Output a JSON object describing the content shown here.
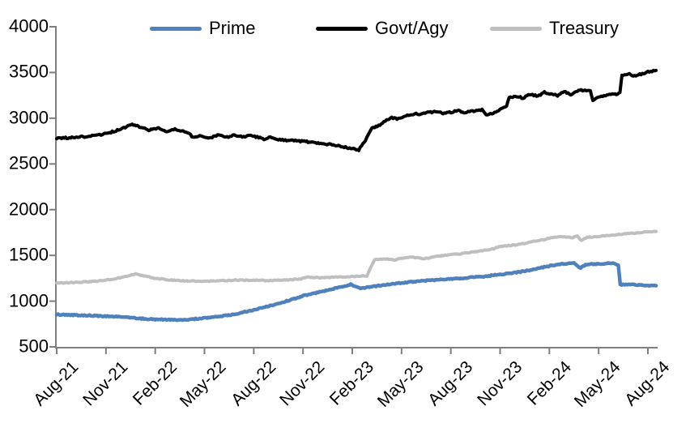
{
  "legend": [
    {
      "label": "Prime",
      "color": "#4F81BD"
    },
    {
      "label": "Govt/Agy",
      "color": "#000000"
    },
    {
      "label": "Treasury",
      "color": "#BFBFBF"
    }
  ],
  "axis_color": "#7F7F7F",
  "chart_data": {
    "type": "line",
    "title": "",
    "xlabel": "",
    "ylabel": "",
    "x_unit": "months since Aug-2021",
    "ylim": [
      500,
      4000
    ],
    "y_tick_labels": [
      "4000",
      "3500",
      "3000",
      "2500",
      "2000",
      "1500",
      "1000",
      "500"
    ],
    "x_tick_labels": [
      "Aug-21",
      "Nov-21",
      "Feb-22",
      "May-22",
      "Aug-22",
      "Nov-22",
      "Feb-23",
      "May-23",
      "Aug-23",
      "Nov-23",
      "Feb-24",
      "May-24",
      "Aug-24"
    ],
    "grid": false,
    "legend_position": "top",
    "series": [
      {
        "name": "Prime",
        "color": "#4F81BD",
        "points": [
          [
            0,
            855
          ],
          [
            0.5,
            850
          ],
          [
            1,
            848
          ],
          [
            2,
            842
          ],
          [
            3,
            836
          ],
          [
            4,
            826
          ],
          [
            5,
            812
          ],
          [
            6,
            800
          ],
          [
            7,
            795
          ],
          [
            7.5,
            793
          ],
          [
            8,
            798
          ],
          [
            9,
            815
          ],
          [
            10,
            833
          ],
          [
            11,
            862
          ],
          [
            12,
            905
          ],
          [
            13,
            950
          ],
          [
            14,
            1000
          ],
          [
            15,
            1058
          ],
          [
            16,
            1098
          ],
          [
            17,
            1140
          ],
          [
            17.9,
            1183
          ],
          [
            18.5,
            1136
          ],
          [
            19.2,
            1158
          ],
          [
            20,
            1178
          ],
          [
            21,
            1200
          ],
          [
            22,
            1218
          ],
          [
            23,
            1230
          ],
          [
            24,
            1242
          ],
          [
            25,
            1255
          ],
          [
            26,
            1268
          ],
          [
            27,
            1292
          ],
          [
            28,
            1312
          ],
          [
            29,
            1345
          ],
          [
            30,
            1385
          ],
          [
            30.8,
            1408
          ],
          [
            31.5,
            1415
          ],
          [
            31.9,
            1360
          ],
          [
            32.2,
            1400
          ],
          [
            33,
            1408
          ],
          [
            33.8,
            1415
          ],
          [
            34.2,
            1398
          ],
          [
            34.32,
            1178
          ],
          [
            35,
            1185
          ],
          [
            35.6,
            1175
          ],
          [
            36,
            1172
          ],
          [
            36.5,
            1168
          ]
        ]
      },
      {
        "name": "Govt/Agy",
        "color": "#000000",
        "points": [
          [
            0,
            2778
          ],
          [
            1,
            2790
          ],
          [
            2,
            2802
          ],
          [
            3,
            2830
          ],
          [
            4,
            2888
          ],
          [
            4.6,
            2930
          ],
          [
            5.2,
            2900
          ],
          [
            5.6,
            2868
          ],
          [
            6.2,
            2892
          ],
          [
            6.7,
            2852
          ],
          [
            7.2,
            2878
          ],
          [
            7.7,
            2858
          ],
          [
            8,
            2842
          ],
          [
            8.3,
            2790
          ],
          [
            8.8,
            2808
          ],
          [
            9.3,
            2782
          ],
          [
            9.8,
            2818
          ],
          [
            10.3,
            2792
          ],
          [
            10.8,
            2812
          ],
          [
            11.3,
            2795
          ],
          [
            11.8,
            2812
          ],
          [
            12.3,
            2790
          ],
          [
            12.7,
            2762
          ],
          [
            13,
            2795
          ],
          [
            13.5,
            2768
          ],
          [
            14,
            2760
          ],
          [
            15,
            2748
          ],
          [
            16,
            2728
          ],
          [
            17,
            2705
          ],
          [
            17.5,
            2685
          ],
          [
            18,
            2668
          ],
          [
            18.4,
            2655
          ],
          [
            18.8,
            2760
          ],
          [
            19.2,
            2890
          ],
          [
            19.6,
            2920
          ],
          [
            20,
            2968
          ],
          [
            20.4,
            3005
          ],
          [
            20.8,
            2990
          ],
          [
            21.2,
            3030
          ],
          [
            21.8,
            3048
          ],
          [
            22.2,
            3042
          ],
          [
            22.6,
            3060
          ],
          [
            23,
            3068
          ],
          [
            23.6,
            3052
          ],
          [
            24,
            3065
          ],
          [
            24.4,
            3082
          ],
          [
            24.8,
            3062
          ],
          [
            25.4,
            3078
          ],
          [
            25.9,
            3092
          ],
          [
            26.15,
            3032
          ],
          [
            26.5,
            3052
          ],
          [
            27,
            3092
          ],
          [
            27.4,
            3125
          ],
          [
            27.55,
            3228
          ],
          [
            28,
            3242
          ],
          [
            28.4,
            3218
          ],
          [
            28.8,
            3258
          ],
          [
            29.3,
            3242
          ],
          [
            29.7,
            3282
          ],
          [
            30.1,
            3262
          ],
          [
            30.5,
            3248
          ],
          [
            30.9,
            3292
          ],
          [
            31.3,
            3262
          ],
          [
            31.7,
            3300
          ],
          [
            32.1,
            3308
          ],
          [
            32.5,
            3298
          ],
          [
            32.65,
            3198
          ],
          [
            33,
            3238
          ],
          [
            33.5,
            3252
          ],
          [
            34,
            3262
          ],
          [
            34.3,
            3272
          ],
          [
            34.42,
            3462
          ],
          [
            34.8,
            3490
          ],
          [
            35.1,
            3462
          ],
          [
            35.5,
            3478
          ],
          [
            36,
            3510
          ],
          [
            36.5,
            3522
          ]
        ]
      },
      {
        "name": "Treasury",
        "color": "#BFBFBF",
        "points": [
          [
            0,
            1198
          ],
          [
            1,
            1204
          ],
          [
            2,
            1212
          ],
          [
            3,
            1228
          ],
          [
            4,
            1260
          ],
          [
            4.8,
            1298
          ],
          [
            5.5,
            1268
          ],
          [
            6,
            1248
          ],
          [
            7,
            1230
          ],
          [
            8,
            1220
          ],
          [
            9,
            1217
          ],
          [
            10,
            1222
          ],
          [
            11,
            1230
          ],
          [
            12,
            1228
          ],
          [
            13,
            1224
          ],
          [
            14,
            1232
          ],
          [
            14.8,
            1240
          ],
          [
            15.2,
            1262
          ],
          [
            16,
            1258
          ],
          [
            17,
            1262
          ],
          [
            18,
            1270
          ],
          [
            18.9,
            1278
          ],
          [
            19.35,
            1455
          ],
          [
            20,
            1460
          ],
          [
            20.6,
            1452
          ],
          [
            21,
            1468
          ],
          [
            21.6,
            1480
          ],
          [
            22.1,
            1470
          ],
          [
            22.4,
            1462
          ],
          [
            23,
            1488
          ],
          [
            23.6,
            1498
          ],
          [
            24,
            1510
          ],
          [
            24.6,
            1518
          ],
          [
            25,
            1528
          ],
          [
            25.6,
            1542
          ],
          [
            26,
            1556
          ],
          [
            26.6,
            1572
          ],
          [
            27,
            1598
          ],
          [
            27.6,
            1608
          ],
          [
            28,
            1616
          ],
          [
            28.6,
            1634
          ],
          [
            29,
            1652
          ],
          [
            29.6,
            1668
          ],
          [
            30,
            1690
          ],
          [
            30.7,
            1708
          ],
          [
            31.4,
            1695
          ],
          [
            31.7,
            1712
          ],
          [
            31.95,
            1660
          ],
          [
            32.3,
            1698
          ],
          [
            33,
            1708
          ],
          [
            33.6,
            1716
          ],
          [
            34,
            1724
          ],
          [
            34.6,
            1734
          ],
          [
            35,
            1742
          ],
          [
            35.6,
            1750
          ],
          [
            36,
            1758
          ],
          [
            36.5,
            1762
          ]
        ]
      }
    ]
  }
}
